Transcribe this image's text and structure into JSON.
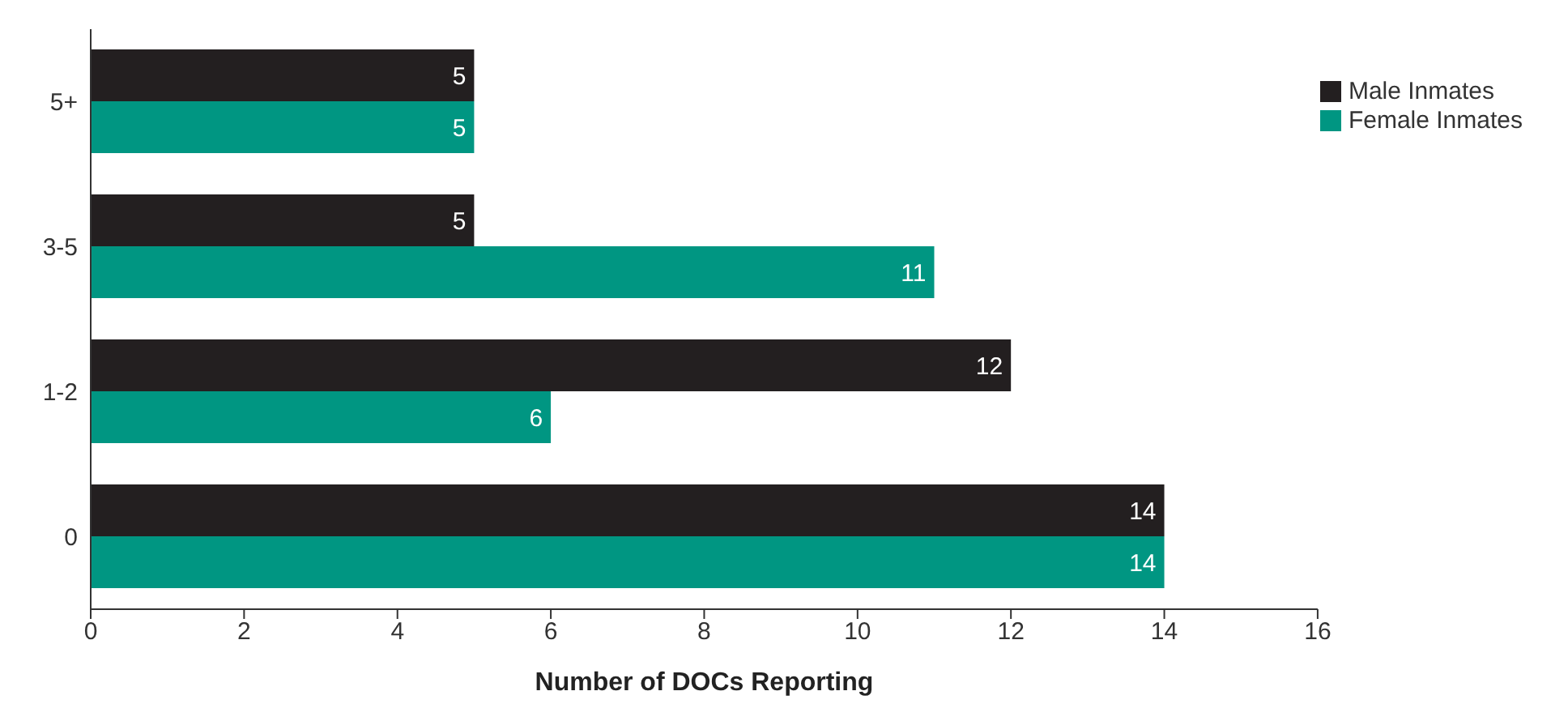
{
  "chart_data": {
    "type": "bar",
    "orientation": "horizontal",
    "categories": [
      "5+",
      "3-5",
      "1-2",
      "0"
    ],
    "series": [
      {
        "name": "Male Inmates",
        "color": "#231f20",
        "values": [
          5,
          5,
          12,
          14
        ]
      },
      {
        "name": "Female Inmates",
        "color": "#009682",
        "values": [
          5,
          11,
          6,
          14
        ]
      }
    ],
    "xlim": [
      0,
      16
    ],
    "xticks": [
      0,
      2,
      4,
      6,
      8,
      10,
      12,
      14,
      16
    ],
    "xlabel": "Number of DOCs Reporting",
    "legend": "top right",
    "data_labels": true
  }
}
